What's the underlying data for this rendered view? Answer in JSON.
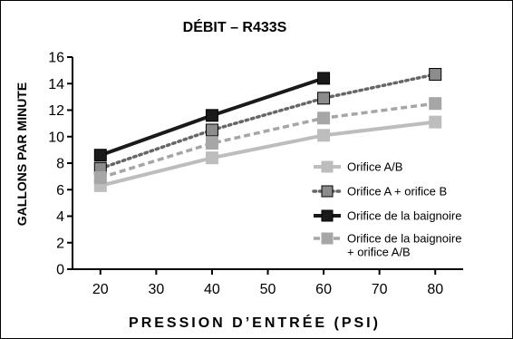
{
  "chart_data": {
    "type": "line",
    "title": "DÉBIT – R433S",
    "xlabel": "PRESSION D’ENTRÉE (PSI)",
    "ylabel": "GALLONS PAR MINUTE",
    "x_ticks": [
      20,
      30,
      40,
      50,
      60,
      70,
      80
    ],
    "y_ticks": [
      0,
      2,
      4,
      6,
      8,
      10,
      12,
      14,
      16
    ],
    "xlim": [
      15,
      85
    ],
    "ylim": [
      0,
      16
    ],
    "grid": false,
    "legend_position": "right",
    "series": [
      {
        "name": "Orifice A/B",
        "x": [
          20,
          40,
          60,
          80
        ],
        "y": [
          6.3,
          8.4,
          10.1,
          11.1
        ],
        "color": "#bdbdbd",
        "marker_fill": "#bdbdbd",
        "line_style": "solid"
      },
      {
        "name": "Orifice A + orifice B",
        "x": [
          20,
          40,
          60,
          80
        ],
        "y": [
          7.6,
          10.5,
          12.9,
          14.7
        ],
        "color": "#666666",
        "marker_fill": "#8c8c8c",
        "line_style": "dotted"
      },
      {
        "name": "Orifice de la baignoire",
        "x": [
          20,
          40,
          60
        ],
        "y": [
          8.6,
          11.6,
          14.4
        ],
        "color": "#1a1a1a",
        "marker_fill": "#1a1a1a",
        "line_style": "solid"
      },
      {
        "name": "Orifice de la baignoire\n+ orifice A/B",
        "x": [
          20,
          40,
          60,
          80
        ],
        "y": [
          6.9,
          9.5,
          11.4,
          12.5
        ],
        "color": "#a6a6a6",
        "marker_fill": "#a6a6a6",
        "line_style": "dashed"
      }
    ]
  }
}
